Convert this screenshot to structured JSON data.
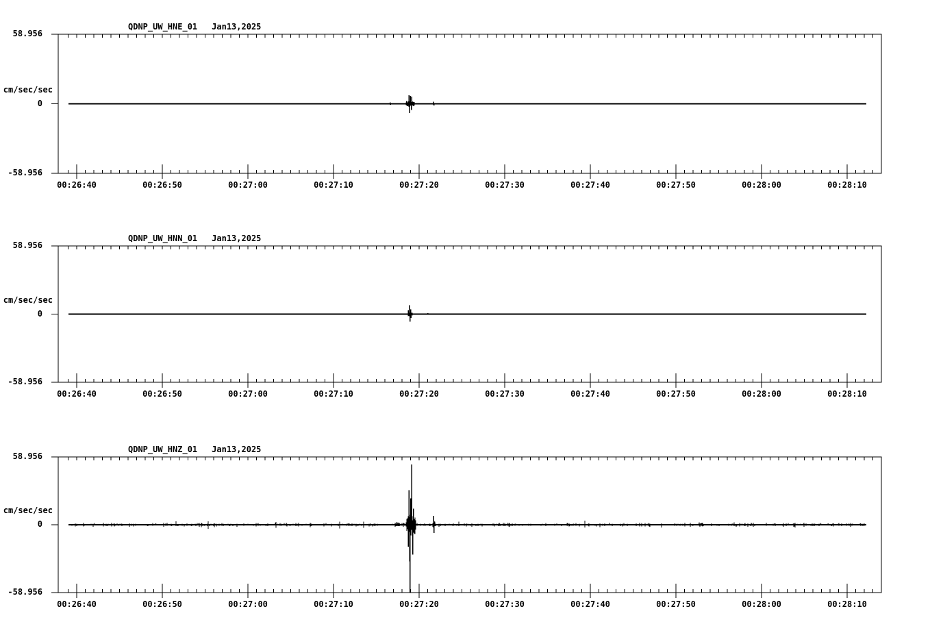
{
  "colors": {
    "background": "#ffffff",
    "trace": "#000000",
    "axis": "#000000",
    "text": "#000000"
  },
  "chart_data": [
    {
      "type": "line",
      "panel": "HNE",
      "title": {
        "station": "QDNP_UW_HNE_01",
        "date": "Jan13,2025"
      },
      "y_axis": {
        "max_label": "58.956",
        "zero_label": "0",
        "min_label": "-58.956",
        "units": "cm/sec/sec",
        "ylim": [
          -58.956,
          58.956
        ]
      },
      "x_axis": {
        "tick_labels": [
          "00:26:40",
          "00:26:50",
          "00:27:00",
          "00:27:10",
          "00:27:20",
          "00:27:30",
          "00:27:40",
          "00:27:50",
          "00:28:00",
          "00:28:10"
        ],
        "major_interval_seconds": 10,
        "minor_interval_seconds": 1
      },
      "baseline_value": 0,
      "time_reference": "t = seconds after 00:26:40",
      "noise_amp": 0,
      "envelopes": [
        {
          "t0": 38.35,
          "t1": 39.55,
          "amp": 3.2
        },
        {
          "t0": 41.6,
          "t1": 41.85,
          "amp": 1.0
        }
      ],
      "spikes": [
        {
          "t": 36.6,
          "a": 1.3
        },
        {
          "t": 36.65,
          "a": -0.9
        },
        {
          "t": 38.55,
          "a": 2.2
        },
        {
          "t": 38.6,
          "a": -2.0
        },
        {
          "t": 38.82,
          "a": 7.4
        },
        {
          "t": 38.9,
          "a": -7.8
        },
        {
          "t": 38.98,
          "a": 6.8
        },
        {
          "t": 39.08,
          "a": -5.2
        },
        {
          "t": 39.14,
          "a": 6.2
        },
        {
          "t": 41.68,
          "a": 1.8
        },
        {
          "t": 41.72,
          "a": -1.4
        }
      ],
      "events": [
        {
          "time": "00:27:19",
          "description": "small transient burst, peak ~7.5 cm/sec/sec"
        },
        {
          "time": "00:27:22",
          "description": "minor blip"
        }
      ]
    },
    {
      "type": "line",
      "panel": "HNN",
      "title": {
        "station": "QDNP_UW_HNN_01",
        "date": "Jan13,2025"
      },
      "y_axis": {
        "max_label": "58.956",
        "zero_label": "0",
        "min_label": "-58.956",
        "units": "cm/sec/sec",
        "ylim": [
          -58.956,
          58.956
        ]
      },
      "x_axis": {
        "tick_labels": [
          "00:26:40",
          "00:26:50",
          "00:27:00",
          "00:27:10",
          "00:27:20",
          "00:27:30",
          "00:27:40",
          "00:27:50",
          "00:28:00",
          "00:28:10"
        ],
        "major_interval_seconds": 10,
        "minor_interval_seconds": 1
      },
      "baseline_value": 0,
      "time_reference": "t = seconds after 00:26:40",
      "noise_amp": 0,
      "envelopes": [
        {
          "t0": 38.55,
          "t1": 39.3,
          "amp": 2.4
        }
      ],
      "spikes": [
        {
          "t": 38.72,
          "a": 3.3
        },
        {
          "t": 38.85,
          "a": 7.6
        },
        {
          "t": 38.92,
          "a": -6.6
        },
        {
          "t": 39.0,
          "a": 4.0
        },
        {
          "t": 39.05,
          "a": -3.2
        },
        {
          "t": 41.0,
          "a": 0.8
        }
      ],
      "events": [
        {
          "time": "00:27:19",
          "description": "small transient burst, peak ~7.6 cm/sec/sec"
        }
      ]
    },
    {
      "type": "line",
      "panel": "HNZ",
      "title": {
        "station": "QDNP_UW_HNZ_01",
        "date": "Jan13,2025"
      },
      "y_axis": {
        "max_label": "58.956",
        "zero_label": "0",
        "min_label": "-58.956",
        "units": "cm/sec/sec",
        "ylim": [
          -58.956,
          58.956
        ]
      },
      "x_axis": {
        "tick_labels": [
          "00:26:40",
          "00:26:50",
          "00:27:00",
          "00:27:10",
          "00:27:20",
          "00:27:30",
          "00:27:40",
          "00:27:50",
          "00:28:00",
          "00:28:10"
        ],
        "major_interval_seconds": 10,
        "minor_interval_seconds": 1
      },
      "baseline_value": 0,
      "time_reference": "t = seconds after 00:26:40",
      "noise_amp": 0.8,
      "envelopes": [
        {
          "t0": 37.15,
          "t1": 37.8,
          "amp": 1.7
        },
        {
          "t0": 37.8,
          "t1": 38.45,
          "amp": 1.2
        },
        {
          "t0": 38.45,
          "t1": 39.65,
          "amp": 11.0
        },
        {
          "t0": 41.55,
          "t1": 41.95,
          "amp": 3.2
        }
      ],
      "spikes": [
        {
          "t": 38.75,
          "a": -19
        },
        {
          "t": 38.82,
          "a": 30
        },
        {
          "t": 38.88,
          "a": -32
        },
        {
          "t": 38.95,
          "a": -58.9
        },
        {
          "t": 39.02,
          "a": 23
        },
        {
          "t": 39.15,
          "a": 52.5
        },
        {
          "t": 39.25,
          "a": -26
        },
        {
          "t": 39.35,
          "a": 14
        },
        {
          "t": 39.5,
          "a": -8
        },
        {
          "t": 41.68,
          "a": 7.8
        },
        {
          "t": 41.74,
          "a": -7.0
        }
      ],
      "events": [
        {
          "time": "00:27:19",
          "description": "main transient burst, positive peak ~53 cm/sec/sec, negative peak reaches bottom of scale (-58.956)"
        },
        {
          "time": "00:27:22",
          "description": "aftershock burst ~8 cm/sec/sec"
        }
      ]
    }
  ]
}
